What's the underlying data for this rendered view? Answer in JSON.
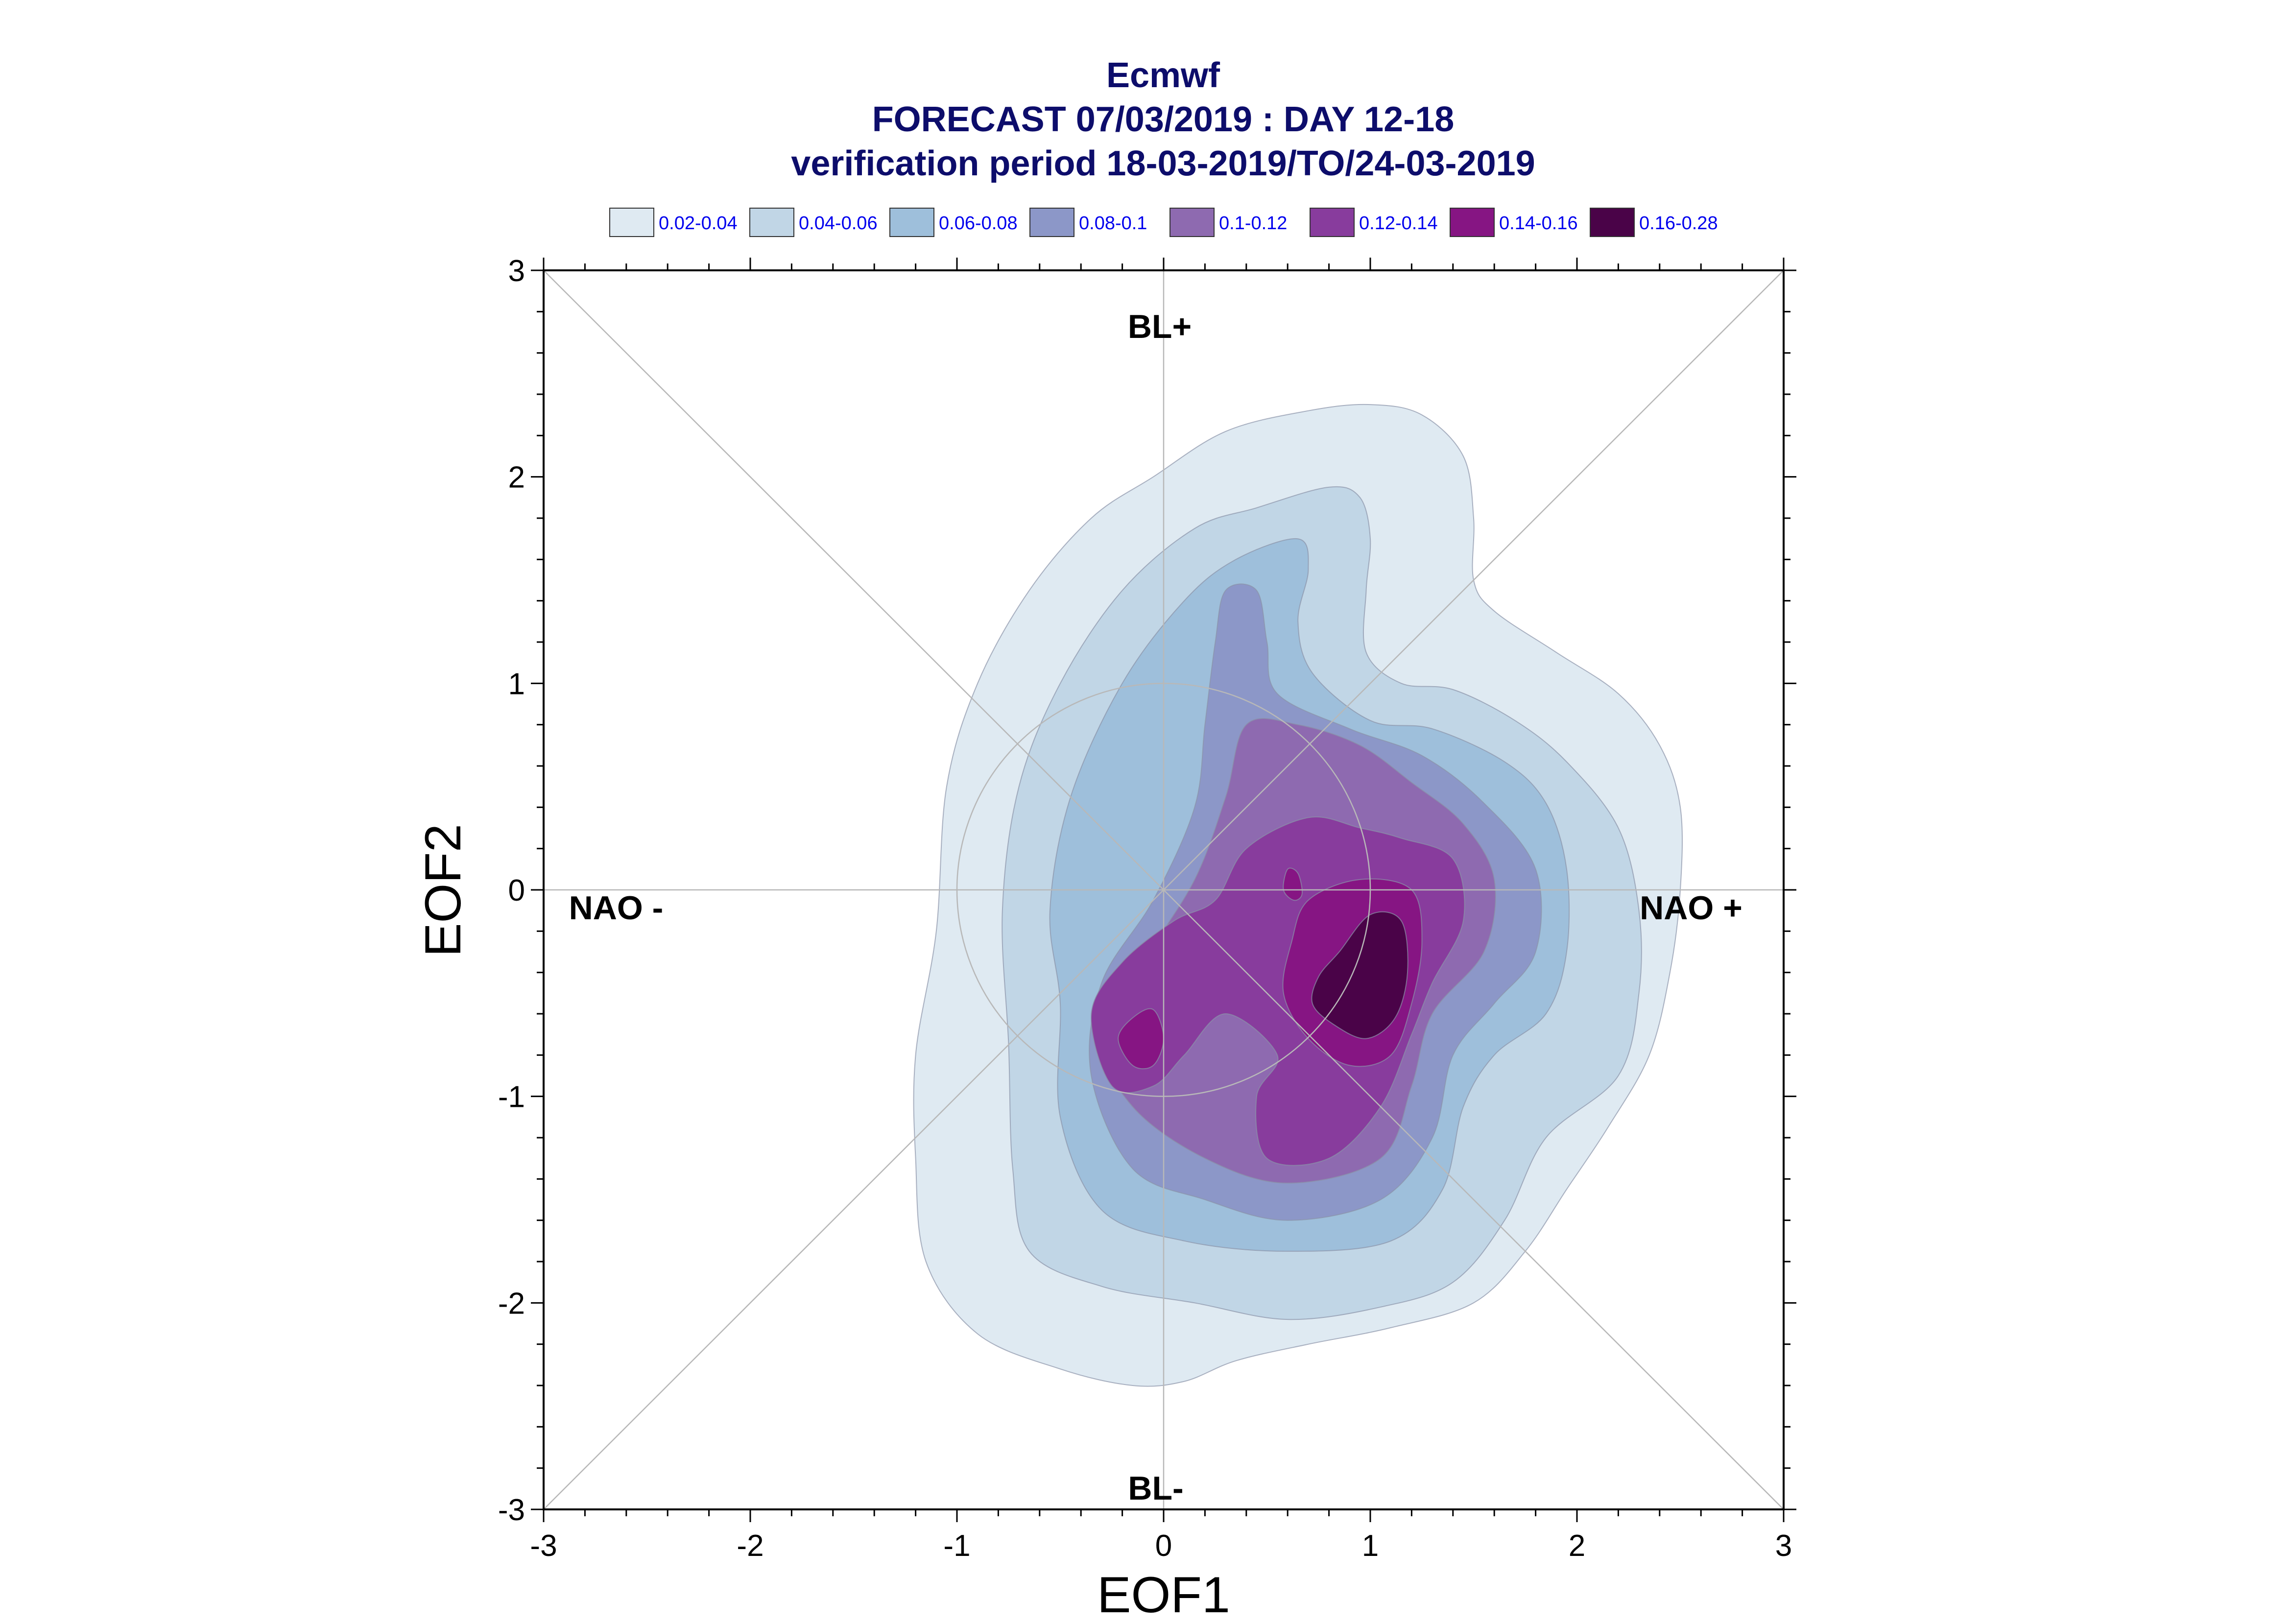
{
  "title": {
    "lines": [
      "Ecmwf",
      "FORECAST 07/03/2019 : DAY 12-18",
      "verification period 18-03-2019/TO/24-03-2019"
    ],
    "color": "#0d0d6b"
  },
  "legend": {
    "text_color": "#0000ee",
    "entries": [
      {
        "label": "0.02-0.04",
        "color": "#dfeaf2"
      },
      {
        "label": "0.04-0.06",
        "color": "#c1d6e6"
      },
      {
        "label": "0.06-0.08",
        "color": "#9ebfdb"
      },
      {
        "label": "0.08-0.1",
        "color": "#8c97c8"
      },
      {
        "label": "0.1-0.12",
        "color": "#8e6ab0"
      },
      {
        "label": "0.12-0.14",
        "color": "#883c9d"
      },
      {
        "label": "0.14-0.16",
        "color": "#861583"
      },
      {
        "label": "0.16-0.28",
        "color": "#4a0348"
      }
    ]
  },
  "regimes": {
    "top": "BL+",
    "bottom": "BL-",
    "left": "NAO -",
    "right": "NAO +"
  },
  "chart_data": {
    "type": "contour",
    "title": "Ecmwf FORECAST 07/03/2019 : DAY 12-18 verification period 18-03-2019/TO/24-03-2019",
    "xlabel": "EOF1",
    "ylabel": "EOF2",
    "xlim": [
      -3,
      3
    ],
    "ylim": [
      -3,
      3
    ],
    "xticks": [
      -3,
      -2,
      -1,
      0,
      1,
      2,
      3
    ],
    "yticks": [
      -3,
      -2,
      -1,
      0,
      1,
      2,
      3
    ],
    "grid": false,
    "reference_circle_radius": 1,
    "levels": [
      {
        "range": "0.02-0.04",
        "polygons": [
          [
            [
              -0.05,
              2.0
            ],
            [
              0.3,
              2.22
            ],
            [
              0.7,
              2.32
            ],
            [
              1.0,
              2.35
            ],
            [
              1.25,
              2.3
            ],
            [
              1.45,
              2.1
            ],
            [
              1.5,
              1.8
            ],
            [
              1.5,
              1.5
            ],
            [
              1.6,
              1.35
            ],
            [
              1.9,
              1.15
            ],
            [
              2.2,
              0.95
            ],
            [
              2.4,
              0.7
            ],
            [
              2.5,
              0.4
            ],
            [
              2.5,
              0.0
            ],
            [
              2.45,
              -0.4
            ],
            [
              2.35,
              -0.8
            ],
            [
              2.15,
              -1.15
            ],
            [
              1.95,
              -1.45
            ],
            [
              1.75,
              -1.75
            ],
            [
              1.5,
              -2.0
            ],
            [
              1.1,
              -2.12
            ],
            [
              0.7,
              -2.2
            ],
            [
              0.35,
              -2.28
            ],
            [
              0.1,
              -2.38
            ],
            [
              -0.15,
              -2.4
            ],
            [
              -0.5,
              -2.32
            ],
            [
              -0.9,
              -2.15
            ],
            [
              -1.15,
              -1.8
            ],
            [
              -1.2,
              -1.3
            ],
            [
              -1.2,
              -0.8
            ],
            [
              -1.1,
              -0.2
            ],
            [
              -1.05,
              0.5
            ],
            [
              -0.9,
              1.0
            ],
            [
              -0.65,
              1.45
            ],
            [
              -0.35,
              1.8
            ]
          ]
        ]
      },
      {
        "range": "0.04-0.06",
        "polygons": [
          [
            [
              0.15,
              1.75
            ],
            [
              0.45,
              1.85
            ],
            [
              0.8,
              1.95
            ],
            [
              0.95,
              1.9
            ],
            [
              1.0,
              1.7
            ],
            [
              0.98,
              1.45
            ],
            [
              0.98,
              1.15
            ],
            [
              1.15,
              1.0
            ],
            [
              1.4,
              0.97
            ],
            [
              1.7,
              0.82
            ],
            [
              1.95,
              0.62
            ],
            [
              2.2,
              0.3
            ],
            [
              2.3,
              -0.1
            ],
            [
              2.3,
              -0.5
            ],
            [
              2.2,
              -0.9
            ],
            [
              1.85,
              -1.2
            ],
            [
              1.65,
              -1.6
            ],
            [
              1.4,
              -1.9
            ],
            [
              1.05,
              -2.02
            ],
            [
              0.6,
              -2.08
            ],
            [
              0.15,
              -2.0
            ],
            [
              -0.3,
              -1.92
            ],
            [
              -0.65,
              -1.75
            ],
            [
              -0.73,
              -1.35
            ],
            [
              -0.75,
              -0.75
            ],
            [
              -0.78,
              -0.1
            ],
            [
              -0.7,
              0.5
            ],
            [
              -0.5,
              1.0
            ],
            [
              -0.2,
              1.45
            ]
          ]
        ]
      },
      {
        "range": "0.06-0.08",
        "polygons": [
          [
            [
              0.1,
              1.4
            ],
            [
              0.35,
              1.6
            ],
            [
              0.65,
              1.7
            ],
            [
              0.7,
              1.55
            ],
            [
              0.65,
              1.3
            ],
            [
              0.72,
              1.05
            ],
            [
              1.0,
              0.82
            ],
            [
              1.3,
              0.78
            ],
            [
              1.65,
              0.62
            ],
            [
              1.85,
              0.42
            ],
            [
              1.95,
              0.1
            ],
            [
              1.95,
              -0.3
            ],
            [
              1.85,
              -0.6
            ],
            [
              1.6,
              -0.8
            ],
            [
              1.45,
              -1.05
            ],
            [
              1.35,
              -1.45
            ],
            [
              1.1,
              -1.7
            ],
            [
              0.6,
              -1.75
            ],
            [
              0.1,
              -1.7
            ],
            [
              -0.3,
              -1.55
            ],
            [
              -0.5,
              -1.1
            ],
            [
              -0.5,
              -0.55
            ],
            [
              -0.55,
              -0.1
            ],
            [
              -0.45,
              0.45
            ],
            [
              -0.2,
              1.0
            ]
          ]
        ]
      },
      {
        "range": "0.08-0.1",
        "polygons": [
          [
            [
              0.25,
              1.2
            ],
            [
              0.3,
              1.45
            ],
            [
              0.45,
              1.45
            ],
            [
              0.5,
              1.2
            ],
            [
              0.55,
              0.95
            ],
            [
              0.9,
              0.78
            ],
            [
              1.25,
              0.65
            ],
            [
              1.55,
              0.42
            ],
            [
              1.8,
              0.1
            ],
            [
              1.8,
              -0.3
            ],
            [
              1.6,
              -0.55
            ],
            [
              1.4,
              -0.8
            ],
            [
              1.3,
              -1.2
            ],
            [
              1.05,
              -1.5
            ],
            [
              0.6,
              -1.6
            ],
            [
              0.2,
              -1.5
            ],
            [
              -0.15,
              -1.35
            ],
            [
              -0.35,
              -0.9
            ],
            [
              -0.3,
              -0.45
            ],
            [
              -0.05,
              -0.05
            ],
            [
              0.15,
              0.4
            ],
            [
              0.2,
              0.8
            ]
          ]
        ]
      },
      {
        "range": "0.1-0.12",
        "polygons": [
          [
            [
              0.4,
              0.8
            ],
            [
              0.65,
              0.8
            ],
            [
              0.95,
              0.7
            ],
            [
              1.2,
              0.52
            ],
            [
              1.45,
              0.32
            ],
            [
              1.6,
              0.05
            ],
            [
              1.55,
              -0.3
            ],
            [
              1.3,
              -0.6
            ],
            [
              1.2,
              -0.95
            ],
            [
              1.05,
              -1.3
            ],
            [
              0.6,
              -1.42
            ],
            [
              0.2,
              -1.3
            ],
            [
              -0.15,
              -1.05
            ],
            [
              -0.3,
              -0.72
            ],
            [
              -0.1,
              -0.35
            ],
            [
              0.15,
              0.05
            ],
            [
              0.3,
              0.45
            ]
          ]
        ]
      },
      {
        "range": "0.12-0.14",
        "polygons": [
          [
            [
              0.4,
              0.2
            ],
            [
              0.7,
              0.35
            ],
            [
              0.95,
              0.3
            ],
            [
              1.15,
              0.25
            ],
            [
              1.4,
              0.15
            ],
            [
              1.45,
              -0.15
            ],
            [
              1.3,
              -0.45
            ],
            [
              1.2,
              -0.7
            ],
            [
              1.05,
              -1.05
            ],
            [
              0.8,
              -1.3
            ],
            [
              0.5,
              -1.3
            ],
            [
              0.45,
              -1.0
            ],
            [
              0.55,
              -0.8
            ],
            [
              0.3,
              -0.6
            ],
            [
              0.1,
              -0.8
            ],
            [
              -0.05,
              -0.95
            ],
            [
              -0.25,
              -0.95
            ],
            [
              -0.35,
              -0.6
            ],
            [
              -0.2,
              -0.35
            ],
            [
              0.05,
              -0.15
            ],
            [
              0.25,
              -0.05
            ]
          ]
        ]
      },
      {
        "range": "0.14-0.16",
        "polygons": [
          [
            [
              0.7,
              -0.05
            ],
            [
              0.95,
              0.05
            ],
            [
              1.2,
              0.0
            ],
            [
              1.25,
              -0.25
            ],
            [
              1.2,
              -0.55
            ],
            [
              1.1,
              -0.8
            ],
            [
              0.9,
              -0.85
            ],
            [
              0.7,
              -0.72
            ],
            [
              0.58,
              -0.5
            ],
            [
              0.62,
              -0.25
            ]
          ],
          [
            [
              -0.15,
              -0.62
            ],
            [
              -0.05,
              -0.58
            ],
            [
              0.0,
              -0.72
            ],
            [
              -0.05,
              -0.85
            ],
            [
              -0.15,
              -0.85
            ],
            [
              -0.22,
              -0.72
            ]
          ],
          [
            [
              0.6,
              0.1
            ],
            [
              0.65,
              0.08
            ],
            [
              0.67,
              -0.02
            ],
            [
              0.63,
              -0.05
            ],
            [
              0.58,
              0.0
            ]
          ]
        ]
      },
      {
        "range": "0.16-0.28",
        "polygons": [
          [
            [
              0.85,
              -0.3
            ],
            [
              1.0,
              -0.12
            ],
            [
              1.15,
              -0.15
            ],
            [
              1.18,
              -0.4
            ],
            [
              1.12,
              -0.62
            ],
            [
              0.98,
              -0.72
            ],
            [
              0.82,
              -0.65
            ],
            [
              0.72,
              -0.55
            ],
            [
              0.75,
              -0.42
            ]
          ]
        ]
      }
    ]
  }
}
